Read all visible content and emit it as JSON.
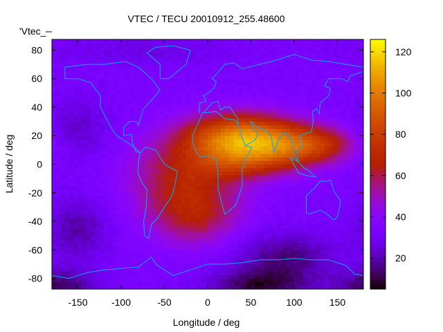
{
  "chart_data": {
    "type": "heatmap",
    "title": "VTEC / TECU 20010912_255.48600",
    "xlabel": "Longitude / deg",
    "ylabel": "Latitude / deg",
    "legend": {
      "label": "'Vtec_",
      "placement": "top-left"
    },
    "xlim": [
      -180,
      180
    ],
    "ylim": [
      -87.5,
      87.5
    ],
    "xticks": [
      -150,
      -100,
      -50,
      0,
      50,
      100,
      150
    ],
    "yticks": [
      -80,
      -60,
      -40,
      -20,
      0,
      20,
      40,
      60,
      80
    ],
    "colorbar": {
      "range": [
        5,
        126
      ],
      "ticks": [
        20,
        40,
        60,
        80,
        100,
        120
      ],
      "palette": "black-purple-red-orange-yellow"
    },
    "grid": false,
    "cell_size": {
      "lon": 5,
      "lat": 2.5
    },
    "field_model": {
      "background": 33,
      "blobs": [
        {
          "lon": 40,
          "lat": 18,
          "slon": 45,
          "slat": 12,
          "amp": 70
        },
        {
          "lon": 45,
          "lat": 0,
          "slon": 35,
          "slat": 8,
          "amp": 20
        },
        {
          "lon": 105,
          "lat": 12,
          "slon": 35,
          "slat": 10,
          "amp": 35
        },
        {
          "lon": -25,
          "lat": -10,
          "slon": 45,
          "slat": 20,
          "amp": 32
        },
        {
          "lon": -15,
          "lat": -38,
          "slon": 35,
          "slat": 14,
          "amp": 22
        },
        {
          "lon": 140,
          "lat": 15,
          "slon": 25,
          "slat": 8,
          "amp": 15
        },
        {
          "lon": -150,
          "lat": -45,
          "slon": 25,
          "slat": 15,
          "amp": -14
        },
        {
          "lon": 90,
          "lat": -65,
          "slon": 40,
          "slat": 12,
          "amp": -18
        },
        {
          "lon": 60,
          "lat": -85,
          "slon": 40,
          "slat": 8,
          "amp": -22
        },
        {
          "lon": -170,
          "lat": -85,
          "slon": 30,
          "slat": 8,
          "amp": -20
        },
        {
          "lon": -150,
          "lat": 25,
          "slon": 25,
          "slat": 15,
          "amp": -10
        },
        {
          "lon": -80,
          "lat": 80,
          "slon": 80,
          "slat": 8,
          "amp": -6
        }
      ]
    },
    "coastlines": [
      [
        [
          -165,
          68
        ],
        [
          -140,
          70
        ],
        [
          -120,
          70
        ],
        [
          -95,
          72
        ],
        [
          -80,
          68
        ],
        [
          -65,
          60
        ],
        [
          -55,
          52
        ],
        [
          -65,
          45
        ],
        [
          -75,
          38
        ],
        [
          -80,
          27
        ],
        [
          -82,
          30
        ],
        [
          -90,
          30
        ],
        [
          -97,
          26
        ],
        [
          -97,
          20
        ],
        [
          -88,
          21
        ],
        [
          -87,
          15
        ],
        [
          -83,
          9
        ],
        [
          -78,
          8
        ],
        [
          -85,
          12
        ],
        [
          -92,
          15
        ],
        [
          -105,
          20
        ],
        [
          -110,
          24
        ],
        [
          -117,
          32
        ],
        [
          -124,
          40
        ],
        [
          -124,
          48
        ],
        [
          -135,
          57
        ],
        [
          -150,
          60
        ],
        [
          -165,
          60
        ],
        [
          -165,
          68
        ]
      ],
      [
        [
          -78,
          8
        ],
        [
          -72,
          12
        ],
        [
          -60,
          10
        ],
        [
          -50,
          0
        ],
        [
          -35,
          -5
        ],
        [
          -38,
          -15
        ],
        [
          -42,
          -23
        ],
        [
          -50,
          -30
        ],
        [
          -58,
          -38
        ],
        [
          -65,
          -42
        ],
        [
          -68,
          -52
        ],
        [
          -73,
          -50
        ],
        [
          -74,
          -40
        ],
        [
          -71,
          -30
        ],
        [
          -70,
          -18
        ],
        [
          -77,
          -12
        ],
        [
          -81,
          -5
        ],
        [
          -80,
          1
        ],
        [
          -78,
          8
        ]
      ],
      [
        [
          -17,
          15
        ],
        [
          -17,
          21
        ],
        [
          -10,
          30
        ],
        [
          -6,
          36
        ],
        [
          10,
          37
        ],
        [
          20,
          32
        ],
        [
          32,
          31
        ],
        [
          35,
          28
        ],
        [
          43,
          13
        ],
        [
          51,
          12
        ],
        [
          40,
          -2
        ],
        [
          40,
          -15
        ],
        [
          35,
          -24
        ],
        [
          32,
          -29
        ],
        [
          20,
          -35
        ],
        [
          17,
          -29
        ],
        [
          12,
          -17
        ],
        [
          12,
          -5
        ],
        [
          9,
          4
        ],
        [
          2,
          6
        ],
        [
          -8,
          5
        ],
        [
          -13,
          8
        ],
        [
          -17,
          15
        ]
      ],
      [
        [
          -10,
          36
        ],
        [
          -9,
          43
        ],
        [
          -2,
          44
        ],
        [
          -5,
          48
        ],
        [
          3,
          51
        ],
        [
          8,
          54
        ],
        [
          10,
          58
        ],
        [
          5,
          60
        ],
        [
          10,
          63
        ],
        [
          20,
          70
        ],
        [
          30,
          71
        ],
        [
          40,
          67
        ],
        [
          60,
          70
        ],
        [
          80,
          73
        ],
        [
          100,
          77
        ],
        [
          120,
          73
        ],
        [
          140,
          72
        ],
        [
          160,
          70
        ],
        [
          180,
          68
        ]
      ],
      [
        [
          35,
          28
        ],
        [
          35,
          32
        ],
        [
          30,
          36
        ],
        [
          26,
          40
        ],
        [
          20,
          40
        ],
        [
          15,
          38
        ],
        [
          12,
          44
        ],
        [
          5,
          43
        ],
        [
          -5,
          36
        ]
      ],
      [
        [
          43,
          13
        ],
        [
          55,
          17
        ],
        [
          58,
          22
        ],
        [
          52,
          25
        ],
        [
          50,
          30
        ],
        [
          57,
          26
        ],
        [
          62,
          25
        ],
        [
          67,
          24
        ],
        [
          73,
          20
        ],
        [
          77,
          8
        ],
        [
          80,
          15
        ],
        [
          87,
          22
        ],
        [
          92,
          21
        ],
        [
          98,
          16
        ],
        [
          100,
          8
        ],
        [
          104,
          1
        ],
        [
          104,
          10
        ],
        [
          109,
          12
        ],
        [
          106,
          20
        ],
        [
          110,
          21
        ],
        [
          120,
          23
        ],
        [
          122,
          30
        ],
        [
          121,
          37
        ],
        [
          126,
          39
        ],
        [
          129,
          35
        ],
        [
          130,
          43
        ],
        [
          140,
          48
        ],
        [
          142,
          53
        ],
        [
          135,
          55
        ],
        [
          140,
          60
        ],
        [
          155,
          60
        ],
        [
          162,
          58
        ],
        [
          165,
          62
        ],
        [
          180,
          65
        ]
      ],
      [
        [
          114,
          -22
        ],
        [
          114,
          -34
        ],
        [
          118,
          -35
        ],
        [
          130,
          -32
        ],
        [
          138,
          -35
        ],
        [
          146,
          -39
        ],
        [
          150,
          -37
        ],
        [
          153,
          -28
        ],
        [
          153,
          -25
        ],
        [
          146,
          -19
        ],
        [
          142,
          -11
        ],
        [
          136,
          -12
        ],
        [
          130,
          -12
        ],
        [
          123,
          -17
        ],
        [
          114,
          -22
        ]
      ],
      [
        [
          95,
          5
        ],
        [
          105,
          -6
        ],
        [
          115,
          -8
        ],
        [
          125,
          -9
        ],
        [
          118,
          -5
        ],
        [
          110,
          -2
        ],
        [
          105,
          2
        ],
        [
          98,
          4
        ],
        [
          95,
          5
        ]
      ],
      [
        [
          -180,
          -78
        ],
        [
          -160,
          -80
        ],
        [
          -140,
          -76
        ],
        [
          -120,
          -74
        ],
        [
          -100,
          -73
        ],
        [
          -80,
          -72
        ],
        [
          -65,
          -65
        ],
        [
          -60,
          -70
        ],
        [
          -40,
          -78
        ],
        [
          -20,
          -74
        ],
        [
          0,
          -70
        ],
        [
          20,
          -70
        ],
        [
          40,
          -69
        ],
        [
          60,
          -67
        ],
        [
          80,
          -67
        ],
        [
          100,
          -66
        ],
        [
          120,
          -67
        ],
        [
          140,
          -67
        ],
        [
          160,
          -71
        ],
        [
          170,
          -77
        ],
        [
          180,
          -78
        ]
      ],
      [
        [
          -55,
          60
        ],
        [
          -45,
          60
        ],
        [
          -25,
          70
        ],
        [
          -20,
          80
        ],
        [
          -40,
          83
        ],
        [
          -60,
          82
        ],
        [
          -70,
          78
        ],
        [
          -55,
          70
        ],
        [
          -55,
          60
        ]
      ]
    ]
  }
}
